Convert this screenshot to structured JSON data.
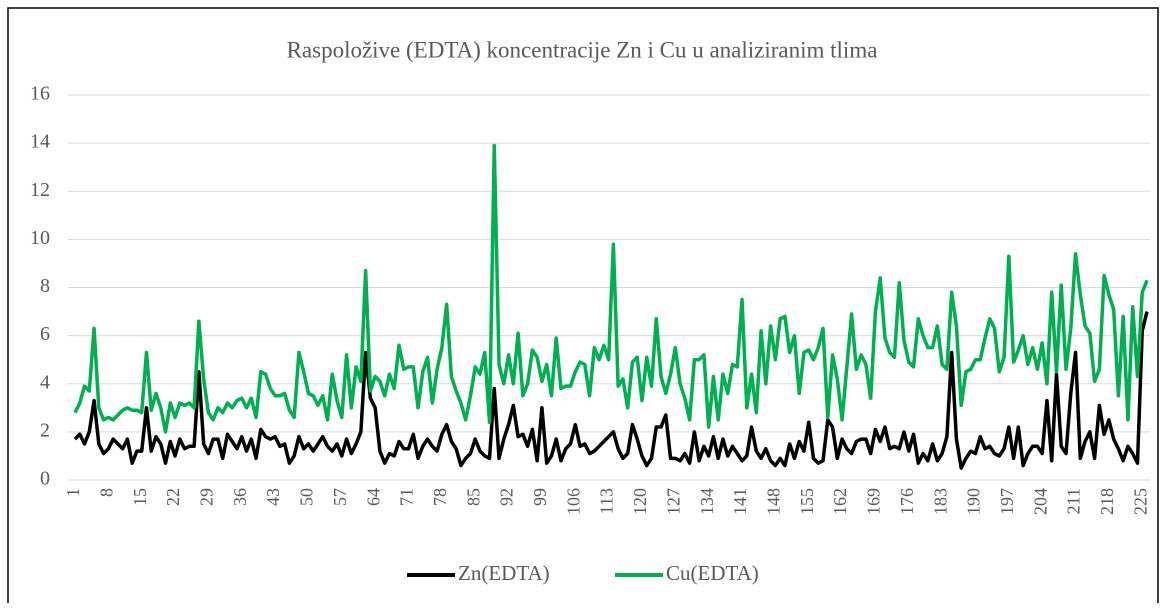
{
  "chart_data": {
    "type": "line",
    "title": "Raspoložive (EDTA) koncentracije Zn i Cu u analiziranim tlima",
    "categories": [
      "1",
      null,
      null,
      null,
      null,
      null,
      null,
      "8",
      null,
      null,
      null,
      null,
      null,
      null,
      "15",
      null,
      null,
      null,
      null,
      null,
      null,
      "22",
      null,
      null,
      null,
      null,
      null,
      null,
      "29",
      null,
      null,
      null,
      null,
      null,
      null,
      "36",
      null,
      null,
      null,
      null,
      null,
      null,
      "43",
      null,
      null,
      null,
      null,
      null,
      null,
      "50",
      null,
      null,
      null,
      null,
      null,
      null,
      "57",
      null,
      null,
      null,
      null,
      null,
      null,
      "64",
      null,
      null,
      null,
      null,
      null,
      null,
      "71",
      null,
      null,
      null,
      null,
      null,
      null,
      "78",
      null,
      null,
      null,
      null,
      null,
      null,
      "85",
      null,
      null,
      null,
      null,
      null,
      null,
      "92",
      null,
      null,
      null,
      null,
      null,
      null,
      "99",
      null,
      null,
      null,
      null,
      null,
      null,
      "106",
      null,
      null,
      null,
      null,
      null,
      null,
      "113",
      null,
      null,
      null,
      null,
      null,
      null,
      "120",
      null,
      null,
      null,
      null,
      null,
      null,
      "127",
      null,
      null,
      null,
      null,
      null,
      null,
      "134",
      null,
      null,
      null,
      null,
      null,
      null,
      "141",
      null,
      null,
      null,
      null,
      null,
      null,
      "148",
      null,
      null,
      null,
      null,
      null,
      null,
      "155",
      null,
      null,
      null,
      null,
      null,
      null,
      "162",
      null,
      null,
      null,
      null,
      null,
      null,
      "169",
      null,
      null,
      null,
      null,
      null,
      null,
      "176",
      null,
      null,
      null,
      null,
      null,
      null,
      "183",
      null,
      null,
      null,
      null,
      null,
      null,
      "190",
      null,
      null,
      null,
      null,
      null,
      null,
      "197",
      null,
      null,
      null,
      null,
      null,
      null,
      "204",
      null,
      null,
      null,
      null,
      null,
      null,
      "211",
      null,
      null,
      null,
      null,
      null,
      null,
      "218",
      null,
      null,
      null,
      null,
      null,
      null,
      "225",
      null
    ],
    "series": [
      {
        "name": "Zn(EDTA)",
        "color": "#000000",
        "values": [
          1.7,
          1.9,
          1.5,
          2.0,
          3.3,
          1.5,
          1.1,
          1.3,
          1.7,
          1.5,
          1.3,
          1.7,
          0.7,
          1.2,
          1.2,
          3.0,
          1.2,
          1.8,
          1.5,
          0.7,
          1.6,
          1.0,
          1.7,
          1.3,
          1.4,
          1.4,
          4.5,
          1.5,
          1.1,
          1.7,
          1.7,
          0.9,
          1.9,
          1.6,
          1.3,
          1.8,
          1.2,
          1.7,
          0.9,
          2.1,
          1.8,
          1.7,
          1.8,
          1.4,
          1.5,
          0.7,
          1.0,
          1.8,
          1.3,
          1.5,
          1.2,
          1.5,
          1.8,
          1.4,
          1.2,
          1.5,
          1.0,
          1.7,
          1.1,
          1.5,
          2.0,
          5.3,
          3.4,
          3.0,
          1.2,
          0.7,
          1.1,
          1.0,
          1.6,
          1.3,
          1.3,
          1.9,
          0.9,
          1.4,
          1.7,
          1.4,
          1.2,
          1.9,
          2.3,
          1.6,
          1.3,
          0.6,
          0.9,
          1.1,
          1.7,
          1.2,
          1.0,
          0.9,
          3.8,
          0.9,
          1.7,
          2.3,
          3.1,
          1.8,
          1.9,
          1.4,
          2.1,
          0.8,
          3.0,
          0.7,
          1.0,
          1.7,
          0.8,
          1.3,
          1.5,
          2.3,
          1.4,
          1.5,
          1.1,
          1.2,
          1.4,
          1.6,
          1.8,
          2.0,
          1.3,
          0.9,
          1.1,
          2.3,
          1.7,
          1.0,
          0.6,
          0.9,
          2.2,
          2.2,
          2.7,
          0.9,
          0.9,
          0.8,
          1.1,
          0.7,
          2.0,
          0.8,
          1.4,
          1.0,
          1.8,
          0.9,
          1.7,
          1.0,
          1.4,
          1.1,
          0.8,
          1.0,
          2.2,
          1.2,
          0.9,
          1.3,
          0.8,
          0.6,
          0.9,
          0.6,
          1.5,
          0.9,
          1.6,
          1.2,
          2.4,
          0.9,
          0.7,
          0.8,
          2.5,
          2.2,
          0.9,
          1.7,
          1.3,
          1.1,
          1.6,
          1.7,
          1.7,
          1.1,
          2.1,
          1.6,
          2.2,
          1.3,
          1.4,
          1.3,
          2.0,
          1.2,
          1.9,
          0.7,
          1.1,
          0.8,
          1.5,
          0.8,
          1.1,
          1.8,
          5.3,
          1.7,
          0.5,
          0.9,
          1.2,
          1.1,
          1.8,
          1.3,
          1.4,
          1.1,
          1.0,
          1.3,
          2.2,
          0.9,
          2.2,
          0.6,
          1.1,
          1.4,
          1.4,
          1.1,
          3.3,
          0.8,
          4.4,
          1.4,
          1.1,
          3.6,
          5.3,
          0.9,
          1.6,
          2.0,
          0.9,
          3.1,
          1.9,
          2.5,
          1.7,
          1.3,
          0.8,
          1.4,
          1.1,
          0.7,
          6.2,
          7.0
        ]
      },
      {
        "name": "Cu(EDTA)",
        "color": "#00b050",
        "values": [
          2.8,
          3.2,
          3.9,
          3.7,
          6.3,
          3.0,
          2.5,
          2.6,
          2.5,
          2.7,
          2.9,
          3.0,
          2.9,
          2.9,
          2.8,
          5.3,
          2.9,
          3.6,
          3.0,
          2.0,
          3.2,
          2.6,
          3.2,
          3.1,
          3.2,
          3.0,
          6.6,
          4.2,
          2.8,
          2.5,
          3.0,
          2.8,
          3.2,
          3.0,
          3.3,
          3.4,
          3.0,
          3.4,
          2.6,
          4.5,
          4.4,
          3.8,
          3.5,
          3.5,
          3.6,
          2.9,
          2.6,
          5.3,
          4.5,
          3.6,
          3.5,
          3.1,
          3.5,
          2.5,
          4.4,
          3.3,
          2.6,
          5.2,
          3.0,
          4.7,
          4.1,
          8.7,
          3.7,
          4.3,
          4.1,
          3.5,
          4.4,
          3.8,
          5.6,
          4.6,
          4.7,
          4.7,
          3.0,
          4.5,
          5.1,
          3.2,
          4.6,
          5.5,
          7.3,
          4.3,
          3.7,
          3.2,
          2.5,
          3.5,
          4.7,
          4.4,
          5.3,
          2.4,
          13.9,
          4.8,
          4.0,
          5.2,
          4.0,
          6.1,
          3.5,
          4.0,
          5.4,
          5.1,
          4.1,
          4.8,
          3.5,
          5.9,
          3.8,
          3.9,
          3.9,
          4.5,
          4.9,
          4.8,
          3.5,
          5.5,
          5.0,
          5.6,
          5.0,
          9.8,
          3.9,
          4.2,
          3.0,
          4.9,
          5.1,
          3.3,
          5.1,
          3.9,
          6.7,
          4.3,
          3.6,
          4.4,
          5.5,
          4.0,
          3.4,
          2.5,
          5.0,
          5.0,
          5.2,
          2.2,
          4.3,
          2.5,
          4.4,
          3.6,
          4.8,
          4.7,
          7.5,
          3.0,
          4.4,
          2.8,
          6.2,
          4.0,
          6.4,
          5.0,
          6.7,
          6.8,
          5.3,
          6.0,
          3.6,
          5.3,
          5.4,
          5.0,
          5.5,
          6.3,
          2.6,
          5.2,
          4.2,
          2.5,
          4.7,
          6.9,
          4.6,
          5.2,
          4.8,
          3.4,
          7.0,
          8.4,
          5.9,
          5.3,
          5.1,
          8.2,
          5.8,
          4.9,
          4.7,
          6.7,
          6.0,
          5.5,
          5.5,
          6.4,
          4.8,
          4.6,
          7.8,
          6.4,
          3.1,
          4.5,
          4.6,
          5.0,
          5.0,
          5.9,
          6.7,
          6.3,
          4.5,
          5.1,
          9.3,
          4.9,
          5.4,
          6.0,
          4.8,
          5.5,
          4.6,
          5.7,
          4.0,
          7.8,
          4.5,
          8.1,
          4.6,
          6.3,
          9.4,
          7.7,
          6.4,
          6.1,
          4.1,
          4.6,
          8.5,
          7.7,
          7.1,
          3.5,
          6.8,
          2.5,
          7.2,
          4.3,
          7.8,
          8.3
        ]
      }
    ],
    "ylim": [
      0,
      16
    ],
    "yticks": [
      0,
      2,
      4,
      6,
      8,
      10,
      12,
      14,
      16
    ],
    "grid": true,
    "legend": "bottom"
  }
}
